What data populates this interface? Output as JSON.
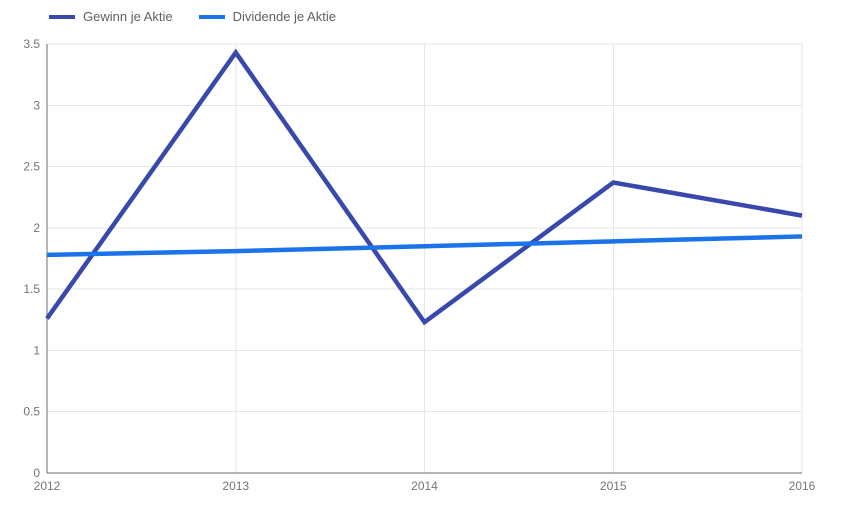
{
  "chart_data": {
    "type": "line",
    "title": "",
    "xlabel": "",
    "ylabel": "",
    "categories": [
      "2012",
      "2013",
      "2014",
      "2015",
      "2016"
    ],
    "series": [
      {
        "name": "Gewinn je Aktie",
        "color": "#3949ab",
        "values": [
          1.26,
          3.43,
          1.23,
          2.37,
          2.1
        ]
      },
      {
        "name": "Dividende je Aktie",
        "color": "#1a73e8",
        "values": [
          1.78,
          1.81,
          1.85,
          1.89,
          1.93
        ]
      }
    ],
    "ylim": [
      0,
      3.5
    ],
    "ytick_step": 0.5,
    "yticks": [
      "0",
      "0.5",
      "1",
      "1.5",
      "2",
      "2.5",
      "3",
      "3.5"
    ],
    "xticks": [
      "2012",
      "2013",
      "2014",
      "2015",
      "2016"
    ],
    "grid": true,
    "legend_position": "top-left",
    "line_width": 4.5,
    "colors": {
      "background": "#ffffff",
      "grid": "#e6e6e6",
      "axis": "#6e6e6e",
      "tick_label": "#757575",
      "legend_label": "#616161"
    }
  }
}
